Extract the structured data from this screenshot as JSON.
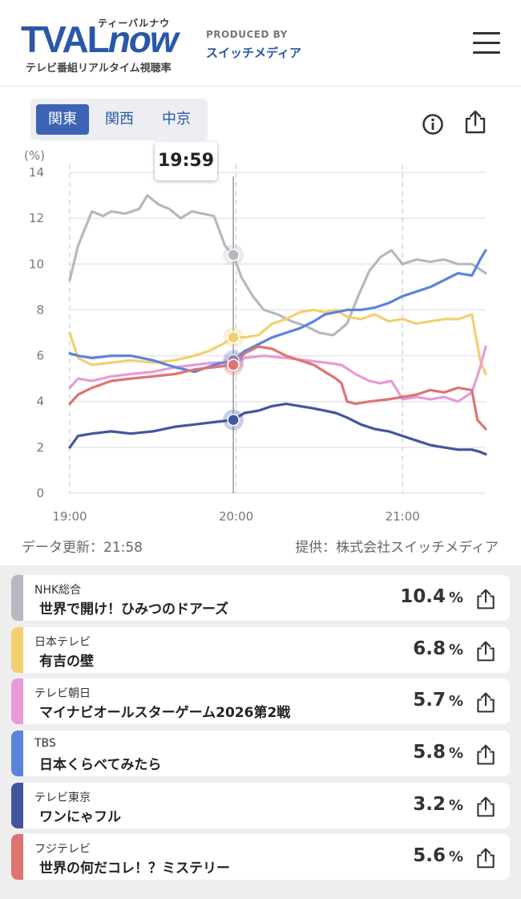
{
  "header": {
    "logo_main": "TVAL",
    "logo_now": "now",
    "logo_kana": "ティーバルナウ",
    "logo_sub": "テレビ番組リアルタイム視聴率",
    "produced_by": "PRODUCED BY",
    "producer": "スイッチメディア"
  },
  "regions": {
    "tabs": [
      "関東",
      "関西",
      "中京"
    ],
    "active": "関東"
  },
  "tooltip": {
    "time": "19:59"
  },
  "footer": {
    "updated": "データ更新：21:58",
    "source": "提供：株式会社スイッチメディア"
  },
  "chart_data": {
    "type": "line",
    "ylabel": "(%)",
    "ylim": [
      0,
      14
    ],
    "yticks": [
      "0",
      "2",
      "4",
      "6",
      "8",
      "10",
      "12",
      "14"
    ],
    "xticks": [
      "19:00",
      "20:00",
      "21:00"
    ],
    "x_unit": "minutes after 19:00",
    "x_range": [
      0,
      150
    ],
    "cursor_x": 59,
    "series": [
      {
        "name": "NHK総合",
        "color": "#b5b8bf",
        "x": [
          0,
          3,
          8,
          12,
          15,
          20,
          25,
          28,
          32,
          36,
          40,
          44,
          48,
          52,
          56,
          59,
          62,
          66,
          70,
          75,
          80,
          85,
          90,
          95,
          100,
          104,
          108,
          112,
          116,
          120,
          125,
          130,
          135,
          140,
          145,
          150
        ],
        "values": [
          9.3,
          10.8,
          12.3,
          12.1,
          12.3,
          12.2,
          12.4,
          13.0,
          12.6,
          12.4,
          12.0,
          12.3,
          12.2,
          12.1,
          10.8,
          10.4,
          9.4,
          8.6,
          8.0,
          7.8,
          7.5,
          7.3,
          7.0,
          6.9,
          7.4,
          8.6,
          9.7,
          10.3,
          10.6,
          10.0,
          10.2,
          10.1,
          10.2,
          10.0,
          10.0,
          9.6
        ]
      },
      {
        "name": "日本テレビ",
        "color": "#f2d070",
        "x": [
          0,
          3,
          8,
          15,
          22,
          30,
          38,
          45,
          50,
          55,
          59,
          63,
          68,
          73,
          78,
          83,
          88,
          92,
          96,
          100,
          105,
          110,
          115,
          120,
          125,
          130,
          135,
          140,
          145,
          148,
          150
        ],
        "values": [
          7.0,
          5.9,
          5.6,
          5.7,
          5.8,
          5.7,
          5.8,
          6.0,
          6.2,
          6.5,
          6.8,
          6.8,
          6.9,
          7.4,
          7.6,
          7.9,
          8.0,
          7.9,
          8.0,
          7.7,
          7.6,
          7.8,
          7.5,
          7.6,
          7.4,
          7.5,
          7.6,
          7.6,
          7.8,
          5.8,
          5.2
        ]
      },
      {
        "name": "テレビ朝日",
        "color": "#e89ad8",
        "x": [
          0,
          3,
          8,
          15,
          22,
          30,
          38,
          45,
          52,
          59,
          63,
          70,
          78,
          85,
          92,
          98,
          103,
          108,
          112,
          116,
          120,
          125,
          130,
          135,
          140,
          145,
          148,
          150
        ],
        "values": [
          4.6,
          5.0,
          4.9,
          5.1,
          5.2,
          5.3,
          5.5,
          5.6,
          5.7,
          5.7,
          5.9,
          6.0,
          5.9,
          5.8,
          5.7,
          5.6,
          5.2,
          4.9,
          4.8,
          4.9,
          4.1,
          4.2,
          4.1,
          4.2,
          4.0,
          4.4,
          5.5,
          6.4
        ]
      },
      {
        "name": "TBS",
        "color": "#5a84dc",
        "x": [
          0,
          3,
          8,
          15,
          22,
          30,
          38,
          45,
          52,
          59,
          63,
          68,
          73,
          78,
          83,
          88,
          92,
          96,
          100,
          105,
          110,
          115,
          120,
          125,
          130,
          135,
          140,
          145,
          148,
          150
        ],
        "values": [
          6.1,
          6.0,
          5.9,
          6.0,
          6.0,
          5.8,
          5.5,
          5.3,
          5.6,
          5.8,
          6.2,
          6.5,
          6.8,
          7.0,
          7.2,
          7.5,
          7.8,
          7.9,
          8.0,
          8.0,
          8.1,
          8.3,
          8.6,
          8.8,
          9.0,
          9.3,
          9.6,
          9.5,
          10.2,
          10.6
        ]
      },
      {
        "name": "テレビ東京",
        "color": "#42569e",
        "x": [
          0,
          3,
          8,
          15,
          22,
          30,
          38,
          45,
          52,
          59,
          63,
          68,
          73,
          78,
          83,
          88,
          92,
          96,
          100,
          105,
          110,
          115,
          120,
          125,
          130,
          135,
          140,
          145,
          148,
          150
        ],
        "values": [
          2.0,
          2.5,
          2.6,
          2.7,
          2.6,
          2.7,
          2.9,
          3.0,
          3.1,
          3.2,
          3.5,
          3.6,
          3.8,
          3.9,
          3.8,
          3.7,
          3.6,
          3.5,
          3.3,
          3.0,
          2.8,
          2.7,
          2.5,
          2.3,
          2.1,
          2.0,
          1.9,
          1.9,
          1.8,
          1.7
        ]
      },
      {
        "name": "フジテレビ",
        "color": "#dd7470",
        "x": [
          0,
          3,
          8,
          15,
          22,
          30,
          38,
          45,
          52,
          59,
          63,
          68,
          73,
          78,
          83,
          88,
          92,
          96,
          98,
          100,
          103,
          108,
          115,
          120,
          125,
          130,
          135,
          140,
          145,
          147,
          150
        ],
        "values": [
          3.9,
          4.3,
          4.6,
          4.9,
          5.0,
          5.1,
          5.2,
          5.4,
          5.5,
          5.6,
          6.1,
          6.4,
          6.3,
          6.0,
          5.8,
          5.6,
          5.3,
          5.0,
          4.8,
          4.0,
          3.9,
          4.0,
          4.1,
          4.2,
          4.3,
          4.5,
          4.4,
          4.6,
          4.5,
          3.2,
          2.8
        ]
      }
    ]
  },
  "programs": [
    {
      "station": "NHK総合",
      "title": "世界で開け！ひみつのドアーズ",
      "rating": "10.4",
      "unit": "%",
      "color": "#b5b8bf"
    },
    {
      "station": "日本テレビ",
      "title": "有吉の壁",
      "rating": "6.8",
      "unit": "%",
      "color": "#f2d070"
    },
    {
      "station": "テレビ朝日",
      "title": "マイナビオールスターゲーム2026第2戦",
      "rating": "5.7",
      "unit": "%",
      "color": "#e89ad8"
    },
    {
      "station": "TBS",
      "title": "日本くらべてみたら",
      "rating": "5.8",
      "unit": "%",
      "color": "#5a84dc"
    },
    {
      "station": "テレビ東京",
      "title": "ワンにゃフル",
      "rating": "3.2",
      "unit": "%",
      "color": "#42569e"
    },
    {
      "station": "フジテレビ",
      "title": "世界の何だコレ！？ミステリー",
      "rating": "5.6",
      "unit": "%",
      "color": "#dd7470"
    }
  ]
}
